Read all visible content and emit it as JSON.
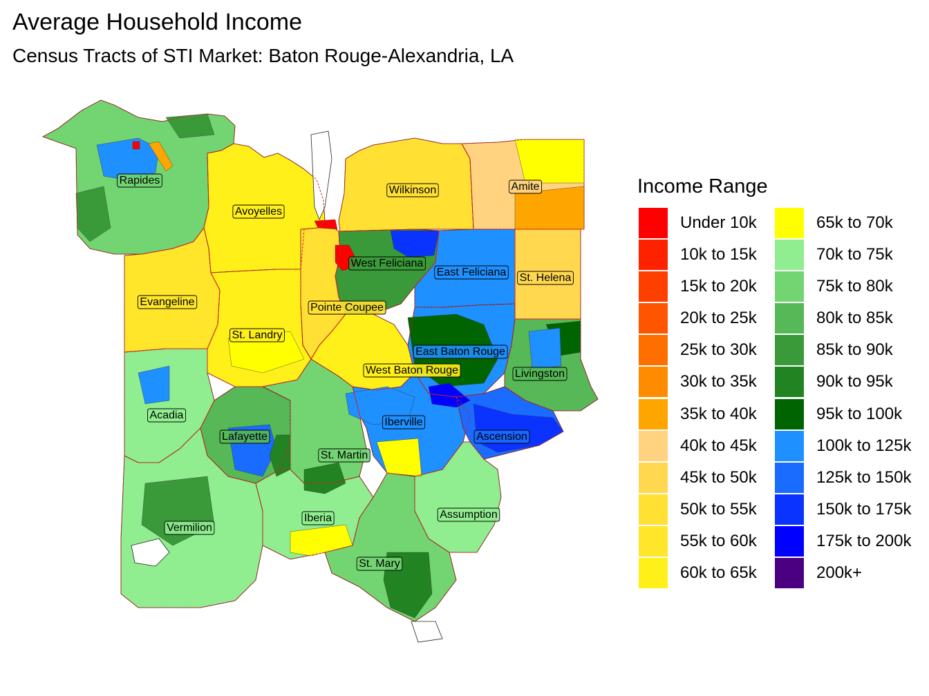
{
  "title": "Average Household Income",
  "subtitle": "Census Tracts of STI Market: Baton Rouge-Alexandria, LA",
  "legend": {
    "title": "Income Range",
    "items": [
      {
        "label": "Under 10k",
        "color": "#FF0000"
      },
      {
        "label": "10k to 15k",
        "color": "#FF2200"
      },
      {
        "label": "15k to 20k",
        "color": "#FF3F00"
      },
      {
        "label": "20k to 25k",
        "color": "#FF5500"
      },
      {
        "label": "25k to 30k",
        "color": "#FF6F00"
      },
      {
        "label": "30k to 35k",
        "color": "#FF8C00"
      },
      {
        "label": "35k to 40k",
        "color": "#FFA500"
      },
      {
        "label": "40k to 45k",
        "color": "#FFD37F"
      },
      {
        "label": "45k to 50k",
        "color": "#FFD84F"
      },
      {
        "label": "50k to 55k",
        "color": "#FFE033"
      },
      {
        "label": "55k to 60k",
        "color": "#FFE62A"
      },
      {
        "label": "60k to 65k",
        "color": "#FFF01A"
      },
      {
        "label": "65k to 70k",
        "color": "#FFFF00"
      },
      {
        "label": "70k to 75k",
        "color": "#90EE90"
      },
      {
        "label": "75k to 80k",
        "color": "#72D572"
      },
      {
        "label": "80k to 85k",
        "color": "#56B856"
      },
      {
        "label": "85k to 90k",
        "color": "#3A9A3A"
      },
      {
        "label": "90k to 95k",
        "color": "#228322"
      },
      {
        "label": "95k to 100k",
        "color": "#006400"
      },
      {
        "label": "100k to 125k",
        "color": "#1E90FF"
      },
      {
        "label": "125k to 150k",
        "color": "#1A6BFF"
      },
      {
        "label": "150k to 175k",
        "color": "#0A33FF"
      },
      {
        "label": "175k to 200k",
        "color": "#0000FF"
      },
      {
        "label": "200k+",
        "color": "#4B0082"
      }
    ]
  },
  "map": {
    "parishes": [
      {
        "name": "Rapides",
        "color": "#72D572"
      },
      {
        "name": "Avoyelles",
        "color": "#FFF01A"
      },
      {
        "name": "Wilkinson",
        "color": "#FFE033"
      },
      {
        "name": "Amite",
        "color": "#FFD37F"
      },
      {
        "name": "West Feliciana",
        "color": "#3A9A3A"
      },
      {
        "name": "East Feliciana",
        "color": "#1E90FF"
      },
      {
        "name": "St. Helena",
        "color": "#FFD84F"
      },
      {
        "name": "Evangeline",
        "color": "#FFE62A"
      },
      {
        "name": "Pointe Coupee",
        "color": "#FFE033"
      },
      {
        "name": "St. Landry",
        "color": "#FFF01A"
      },
      {
        "name": "East Baton Rouge",
        "color": "#1E90FF"
      },
      {
        "name": "West Baton Rouge",
        "color": "#FFF01A"
      },
      {
        "name": "Livingston",
        "color": "#56B856"
      },
      {
        "name": "Acadia",
        "color": "#90EE90"
      },
      {
        "name": "Lafayette",
        "color": "#56B856"
      },
      {
        "name": "St. Martin",
        "color": "#72D572"
      },
      {
        "name": "Iberville",
        "color": "#1E90FF"
      },
      {
        "name": "Ascension",
        "color": "#1A6BFF"
      },
      {
        "name": "Vermilion",
        "color": "#90EE90"
      },
      {
        "name": "Iberia",
        "color": "#90EE90"
      },
      {
        "name": "Assumption",
        "color": "#90EE90"
      },
      {
        "name": "St. Mary",
        "color": "#72D572"
      }
    ]
  }
}
